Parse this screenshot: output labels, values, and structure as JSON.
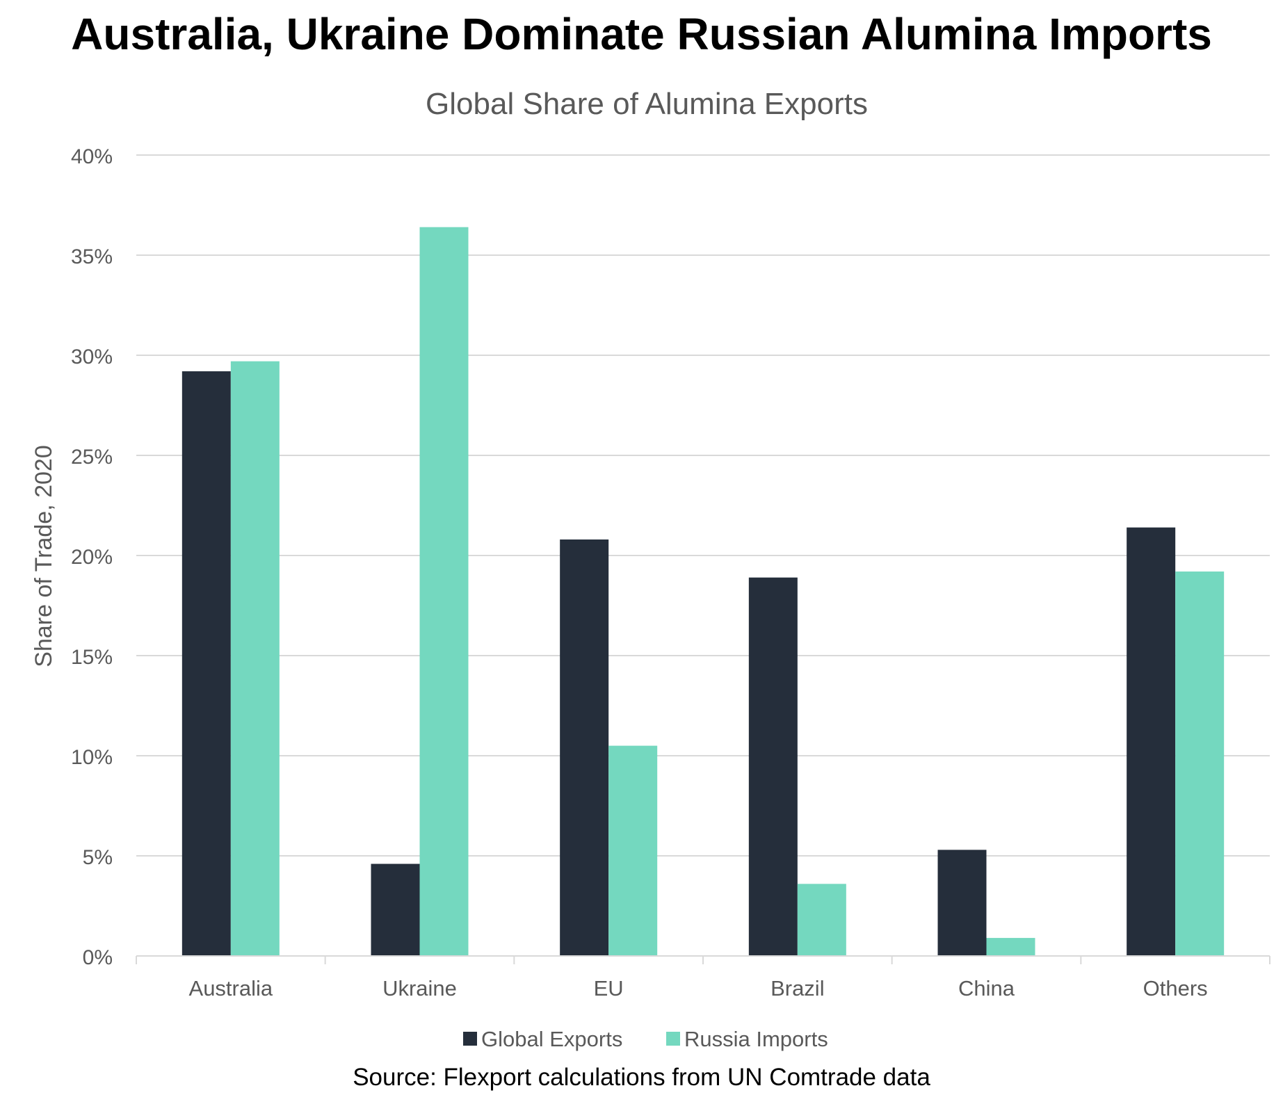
{
  "page_title": "Australia, Ukraine Dominate Russian Alumina Imports",
  "source_note": "Source: Flexport calculations from UN Comtrade data",
  "colors": {
    "global_exports": "#252e3b",
    "russia_imports": "#74d8bf",
    "gridline": "#d9d9d9",
    "axis_text": "#595959"
  },
  "chart_data": {
    "type": "bar",
    "title": "Global Share of Alumina Exports",
    "xlabel": "",
    "ylabel": "Share of Trade, 2020",
    "categories": [
      "Australia",
      "Ukraine",
      "EU",
      "Brazil",
      "China",
      "Others"
    ],
    "series": [
      {
        "name": "Global Exports",
        "values": [
          29.2,
          4.6,
          20.8,
          18.9,
          5.3,
          21.4
        ]
      },
      {
        "name": "Russia Imports",
        "values": [
          29.7,
          36.4,
          10.5,
          3.6,
          0.9,
          19.2
        ]
      }
    ],
    "ylim": [
      0,
      40
    ],
    "yticks": [
      0,
      5,
      10,
      15,
      20,
      25,
      30,
      35,
      40
    ],
    "ytick_labels": [
      "0%",
      "5%",
      "10%",
      "15%",
      "20%",
      "25%",
      "30%",
      "35%",
      "40%"
    ],
    "grid": true,
    "legend_position": "bottom-center"
  }
}
